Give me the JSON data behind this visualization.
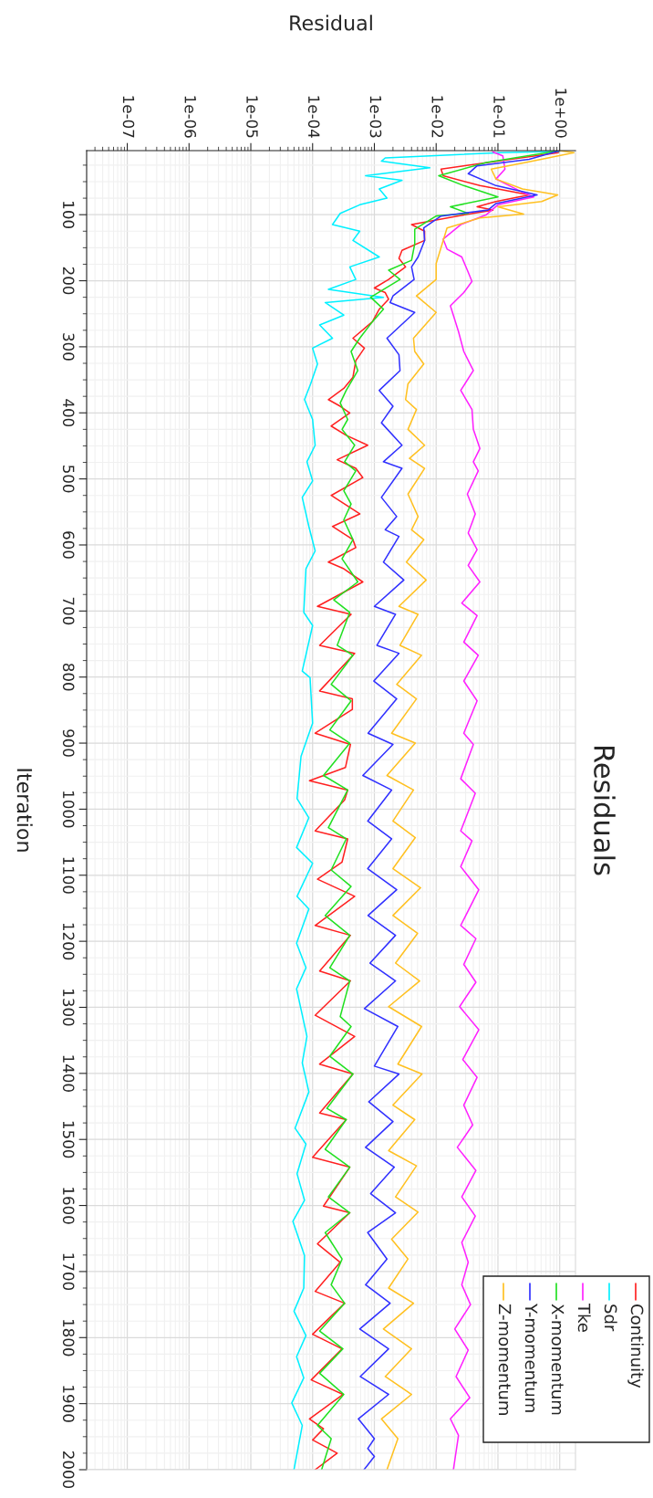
{
  "chart_data": {
    "type": "line",
    "title": "Residuals",
    "xlabel": "Residual",
    "ylabel": "Iteration",
    "ylim": [
      2000,
      3
    ],
    "yticks": [
      100,
      200,
      300,
      400,
      500,
      600,
      700,
      800,
      900,
      1000,
      1100,
      1200,
      1300,
      1400,
      1500,
      1600,
      1700,
      1800,
      1900,
      2000
    ],
    "xlim": [
      2.2e-08,
      1.8
    ],
    "xticks": [
      {
        "value": 1e-07,
        "label": "1e-07"
      },
      {
        "value": 1e-06,
        "label": "1e-06"
      },
      {
        "value": 1e-05,
        "label": "1e-05"
      },
      {
        "value": 0.0001,
        "label": "1e-04"
      },
      {
        "value": 0.001,
        "label": "1e-03"
      },
      {
        "value": 0.01,
        "label": "1e-02"
      },
      {
        "value": 0.1,
        "label": "1e-01"
      },
      {
        "value": 1,
        "label": "1e+00"
      }
    ],
    "log": "x",
    "grid": true,
    "legend": "bottom right",
    "series": [
      {
        "name": "Continuity",
        "color": "#ff2020",
        "values": [
          3,
          6,
          31,
          41,
          56,
          70,
          80,
          88,
          93,
          102,
          115,
          125,
          139,
          154,
          166,
          179,
          198,
          211,
          218,
          228,
          243,
          262,
          287,
          302,
          321,
          346,
          363,
          380,
          390,
          400,
          420,
          434,
          449,
          471,
          484,
          498,
          525,
          553,
          572,
          592,
          604,
          626,
          636,
          656,
          693,
          705,
          752,
          764,
          821,
          833,
          849,
          885,
          902,
          937,
          957,
          971,
          986,
          1033,
          1045,
          1080,
          1106,
          1132,
          1176,
          1191,
          1245,
          1260,
          1312,
          1344,
          1386,
          1401,
          1460,
          1470,
          1527,
          1542,
          1601,
          1611,
          1658,
          1686,
          1730,
          1748,
          1795,
          1817,
          1864,
          1886,
          1923,
          1938,
          1955,
          1975,
          2000
        ],
        "x": [
          1.0,
          0.95,
          0.012,
          0.013,
          0.051,
          0.32,
          0.093,
          0.046,
          0.083,
          0.022,
          0.004,
          0.0065,
          0.0065,
          0.0028,
          0.0025,
          0.0032,
          0.0017,
          0.001,
          0.0015,
          0.0017,
          0.0012,
          0.00093,
          0.00045,
          0.00069,
          0.0005,
          0.00045,
          0.00032,
          0.00018,
          0.00028,
          0.0004,
          0.0002,
          0.00035,
          0.00078,
          0.00025,
          0.0005,
          0.00065,
          0.0002,
          0.00058,
          0.00021,
          0.00045,
          0.0005,
          0.00018,
          0.00032,
          0.00065,
          0.00012,
          0.00042,
          0.00013,
          0.00048,
          0.00013,
          0.00044,
          0.00044,
          0.00011,
          0.00041,
          0.00034,
          8.9e-05,
          0.00037,
          0.00033,
          0.00011,
          0.00037,
          0.0003,
          0.00012,
          0.00048,
          0.00011,
          0.00041,
          0.00013,
          0.00041,
          0.00011,
          0.00048,
          0.00013,
          0.00045,
          0.00013,
          0.00035,
          0.0001,
          0.0004,
          0.00015,
          0.0004,
          0.00012,
          0.00028,
          0.00011,
          0.00033,
          0.0001,
          0.0003,
          9.5e-05,
          0.00031,
          8.9e-05,
          0.00015,
          0.0001,
          0.00025,
          0.00011
        ]
      },
      {
        "name": "Sdr",
        "color": "#00f0ff",
        "values": [
          4,
          6,
          14,
          19,
          29,
          41,
          48,
          61,
          75,
          85,
          98,
          115,
          125,
          139,
          164,
          179,
          198,
          213,
          225,
          233,
          252,
          267,
          287,
          302,
          326,
          356,
          380,
          410,
          449,
          474,
          503,
          528,
          572,
          609,
          636,
          702,
          722,
          791,
          801,
          870,
          920,
          984,
          1013,
          1058,
          1082,
          1132,
          1151,
          1203,
          1240,
          1272,
          1344,
          1384,
          1428,
          1483,
          1507,
          1552,
          1592,
          1624,
          1676,
          1725,
          1760,
          1797,
          1829,
          1861,
          1899,
          1933,
          2000
        ],
        "x": [
          1.0,
          0.11,
          0.0015,
          0.0013,
          0.0079,
          0.00072,
          0.0028,
          0.0012,
          0.0016,
          0.00058,
          0.00028,
          0.00021,
          0.00058,
          0.00045,
          0.0012,
          0.0004,
          0.0005,
          0.00018,
          0.0014,
          0.00016,
          0.00032,
          0.00013,
          0.00021,
          0.0001,
          0.00012,
          9.3e-05,
          7.4e-05,
          0.0001,
          0.00011,
          8.1e-05,
          0.0001,
          6.8e-05,
          8.7e-05,
          0.00011,
          7.8e-05,
          7.2e-05,
          0.0001,
          6.8e-05,
          9.1e-05,
          0.0001,
          6.5e-05,
          5.6e-05,
          8.7e-05,
          5.5e-05,
          0.0001,
          5.6e-05,
          8.7e-05,
          5.5e-05,
          7.8e-05,
          5.5e-05,
          8.1e-05,
          6.8e-05,
          8.7e-05,
          5.2e-05,
          7.8e-05,
          5.6e-05,
          7.4e-05,
          4.8e-05,
          7.4e-05,
          7.2e-05,
          5e-05,
          7.8e-05,
          5.5e-05,
          7.2e-05,
          4.6e-05,
          6.8e-05,
          5e-05
        ]
      },
      {
        "name": "Tke",
        "color": "#ff20ff",
        "values": [
          5,
          11,
          31,
          46,
          66,
          73,
          85,
          100,
          115,
          137,
          152,
          164,
          184,
          201,
          218,
          238,
          277,
          307,
          336,
          366,
          395,
          425,
          454,
          474,
          488,
          523,
          553,
          582,
          607,
          631,
          656,
          688,
          707,
          747,
          767,
          806,
          836,
          885,
          902,
          954,
          976,
          1033,
          1048,
          1087,
          1122,
          1176,
          1196,
          1235,
          1262,
          1299,
          1334,
          1379,
          1406,
          1448,
          1478,
          1512,
          1547,
          1587,
          1616,
          1656,
          1686,
          1720,
          1750,
          1787,
          1819,
          1859,
          1891,
          1923,
          1948,
          2000
        ],
        "x": [
          0.083,
          0.12,
          0.13,
          0.093,
          0.25,
          0.38,
          0.1,
          0.065,
          0.025,
          0.013,
          0.015,
          0.026,
          0.032,
          0.038,
          0.028,
          0.017,
          0.023,
          0.028,
          0.04,
          0.025,
          0.038,
          0.04,
          0.051,
          0.04,
          0.048,
          0.032,
          0.043,
          0.033,
          0.046,
          0.033,
          0.051,
          0.026,
          0.046,
          0.028,
          0.048,
          0.028,
          0.046,
          0.028,
          0.04,
          0.025,
          0.043,
          0.025,
          0.038,
          0.025,
          0.049,
          0.025,
          0.044,
          0.028,
          0.044,
          0.024,
          0.049,
          0.027,
          0.046,
          0.028,
          0.039,
          0.022,
          0.044,
          0.026,
          0.043,
          0.026,
          0.033,
          0.026,
          0.036,
          0.02,
          0.033,
          0.021,
          0.035,
          0.017,
          0.023,
          0.019
        ]
      },
      {
        "name": "X-momentum",
        "color": "#20e020",
        "values": [
          3,
          21,
          41,
          56,
          73,
          88,
          98,
          102,
          122,
          144,
          169,
          184,
          198,
          225,
          243,
          262,
          287,
          307,
          336,
          366,
          385,
          410,
          425,
          449,
          474,
          488,
          518,
          538,
          562,
          592,
          621,
          656,
          683,
          702,
          752,
          767,
          811,
          836,
          880,
          900,
          949,
          971,
          1028,
          1045,
          1092,
          1117,
          1161,
          1191,
          1240,
          1260,
          1314,
          1329,
          1374,
          1401,
          1453,
          1470,
          1515,
          1542,
          1587,
          1611,
          1641,
          1681,
          1720,
          1748,
          1790,
          1817,
          1854,
          1886,
          1933,
          1953,
          2000
        ],
        "x": [
          1.0,
          0.065,
          0.011,
          0.028,
          0.1,
          0.017,
          0.033,
          0.01,
          0.0045,
          0.0045,
          0.004,
          0.0017,
          0.0026,
          0.00087,
          0.0014,
          0.00093,
          0.00058,
          0.00042,
          0.00054,
          0.00035,
          0.00028,
          0.00037,
          0.0003,
          0.00048,
          0.00033,
          0.0005,
          0.00032,
          0.00042,
          0.00032,
          0.00045,
          0.0003,
          0.00054,
          0.00022,
          0.0004,
          0.00025,
          0.00045,
          0.0002,
          0.00042,
          0.00019,
          0.0004,
          0.00015,
          0.00037,
          0.00018,
          0.00035,
          0.0002,
          0.00042,
          0.00016,
          0.0004,
          0.00019,
          0.0004,
          0.00028,
          0.00042,
          0.00019,
          0.00045,
          0.00017,
          0.00035,
          0.00016,
          0.0004,
          0.00018,
          0.0004,
          0.00016,
          0.0003,
          0.0002,
          0.00033,
          0.00013,
          0.00031,
          0.00013,
          0.00032,
          0.00012,
          0.0002,
          0.00014
        ]
      },
      {
        "name": "Y-momentum",
        "color": "#3030ff",
        "values": [
          3,
          16,
          26,
          38,
          56,
          70,
          83,
          93,
          102,
          120,
          139,
          164,
          179,
          198,
          223,
          233,
          248,
          287,
          312,
          336,
          366,
          390,
          415,
          449,
          474,
          484,
          528,
          557,
          577,
          587,
          626,
          653,
          693,
          705,
          752,
          764,
          806,
          833,
          885,
          902,
          949,
          971,
          1018,
          1045,
          1090,
          1122,
          1161,
          1191,
          1233,
          1260,
          1302,
          1329,
          1389,
          1401,
          1443,
          1473,
          1512,
          1542,
          1582,
          1611,
          1641,
          1681,
          1720,
          1748,
          1787,
          1817,
          1859,
          1886,
          1923,
          1953,
          1968,
          1980,
          2000
        ],
        "x": [
          1.0,
          0.32,
          0.046,
          0.033,
          0.093,
          0.43,
          0.093,
          0.069,
          0.012,
          0.0063,
          0.0065,
          0.0051,
          0.004,
          0.0044,
          0.002,
          0.0018,
          0.0045,
          0.0016,
          0.0025,
          0.0026,
          0.0012,
          0.002,
          0.0013,
          0.0028,
          0.0014,
          0.0028,
          0.0013,
          0.0023,
          0.0015,
          0.0025,
          0.0014,
          0.003,
          0.001,
          0.0022,
          0.0011,
          0.0025,
          0.00098,
          0.0023,
          0.00079,
          0.002,
          0.00065,
          0.0019,
          0.00078,
          0.0019,
          0.00078,
          0.0023,
          0.00079,
          0.0022,
          0.00085,
          0.0022,
          0.00069,
          0.0024,
          0.001,
          0.0025,
          0.00081,
          0.002,
          0.00072,
          0.0021,
          0.00087,
          0.0022,
          0.00078,
          0.0016,
          0.00072,
          0.0018,
          0.00058,
          0.0017,
          0.00059,
          0.0017,
          0.00055,
          0.001,
          0.00078,
          0.001,
          0.00068
        ]
      },
      {
        "name": "Z-momentum",
        "color": "#ffc020",
        "values": [
          3,
          6,
          21,
          31,
          46,
          61,
          70,
          80,
          88,
          99,
          105,
          120,
          139,
          174,
          198,
          223,
          248,
          287,
          307,
          326,
          356,
          380,
          395,
          425,
          449,
          469,
          484,
          523,
          557,
          577,
          592,
          626,
          653,
          693,
          705,
          752,
          767,
          811,
          833,
          885,
          900,
          949,
          971,
          1018,
          1043,
          1090,
          1119,
          1161,
          1188,
          1233,
          1260,
          1299,
          1329,
          1386,
          1401,
          1448,
          1470,
          1517,
          1540,
          1587,
          1610,
          1651,
          1681,
          1725,
          1748,
          1787,
          1817,
          1859,
          1886,
          1923,
          1953,
          2000
        ],
        "x": [
          1.0,
          1.7,
          0.28,
          0.078,
          0.093,
          0.25,
          0.93,
          0.51,
          0.1,
          0.26,
          0.051,
          0.015,
          0.013,
          0.01,
          0.01,
          0.0048,
          0.01,
          0.0043,
          0.0045,
          0.0063,
          0.0035,
          0.0032,
          0.0048,
          0.0035,
          0.0065,
          0.0037,
          0.0065,
          0.0035,
          0.0051,
          0.004,
          0.0063,
          0.0033,
          0.0069,
          0.0025,
          0.0051,
          0.0026,
          0.0058,
          0.0023,
          0.0048,
          0.0019,
          0.0046,
          0.0016,
          0.0043,
          0.002,
          0.0046,
          0.002,
          0.0056,
          0.002,
          0.005,
          0.0022,
          0.0054,
          0.0017,
          0.0058,
          0.0024,
          0.0059,
          0.002,
          0.0045,
          0.0017,
          0.0048,
          0.0022,
          0.0051,
          0.0019,
          0.0035,
          0.0017,
          0.0043,
          0.0014,
          0.004,
          0.0015,
          0.004,
          0.0013,
          0.0024,
          0.0016
        ]
      }
    ]
  }
}
